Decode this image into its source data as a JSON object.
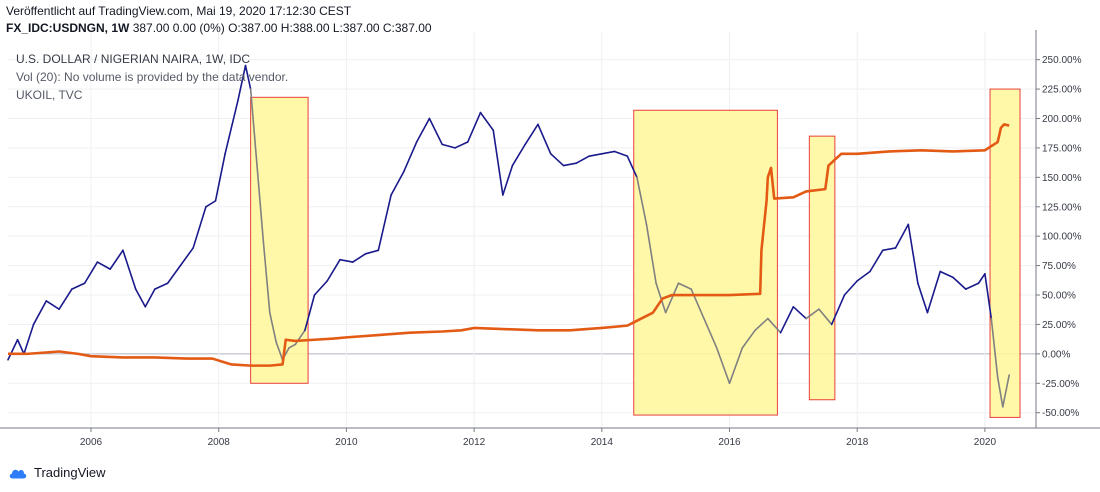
{
  "header": {
    "published": "Veröffentlicht auf TradingView.com, Mai 19, 2020 17:12:30 CEST",
    "symbol": "FX_IDC:USDNGN, 1W",
    "ohlc": "387.00 0.00 (0%) O:387.00 H:388.00 L:387.00 C:387.00"
  },
  "legend": {
    "title": "U.S. DOLLAR / NIGERIAN NAIRA, 1W, IDC",
    "volume": "Vol (20): No volume is provided by the data vendor.",
    "compare": "UKOIL, TVC"
  },
  "footer": {
    "brand": "TradingView"
  },
  "colors": {
    "ukoil": "#1a1a8c",
    "usdngn": "#e35a14",
    "ukoil_highlight": "#808080",
    "box_fill": "#fff79a",
    "box_stroke": "#e8403a"
  },
  "chart_data": {
    "type": "line",
    "x_axis": {
      "ticks": [
        2006,
        2008,
        2010,
        2012,
        2014,
        2016,
        2018,
        2020
      ],
      "range": [
        2004.7,
        2020.8
      ]
    },
    "y_axis": {
      "range": [
        -63,
        265
      ],
      "ticks": [
        -50,
        -25,
        0,
        25,
        50,
        75,
        100,
        125,
        150,
        175,
        200,
        225,
        250
      ],
      "tick_labels": [
        "-50.00%",
        "-25.00%",
        "0.00%",
        "25.00%",
        "50.00%",
        "75.00%",
        "100.00%",
        "125.00%",
        "150.00%",
        "175.00%",
        "200.00%",
        "225.00%",
        "250.00%"
      ]
    },
    "series": [
      {
        "key": "ukoil",
        "x": [
          2004.7,
          2004.85,
          2004.95,
          2005.1,
          2005.3,
          2005.5,
          2005.7,
          2005.9,
          2006.1,
          2006.3,
          2006.5,
          2006.7,
          2006.85,
          2007.0,
          2007.2,
          2007.4,
          2007.6,
          2007.8,
          2007.95,
          2008.1,
          2008.3,
          2008.42,
          2008.5,
          2008.6,
          2008.7,
          2008.8,
          2008.9,
          2009.0,
          2009.1,
          2009.2,
          2009.35,
          2009.5,
          2009.7,
          2009.9,
          2010.1,
          2010.3,
          2010.5,
          2010.7,
          2010.9,
          2011.1,
          2011.3,
          2011.5,
          2011.7,
          2011.9,
          2012.1,
          2012.3,
          2012.45,
          2012.6,
          2012.8,
          2013.0,
          2013.2,
          2013.4,
          2013.6,
          2013.8,
          2014.0,
          2014.2,
          2014.4,
          2014.55,
          2014.7,
          2014.85,
          2015.0,
          2015.2,
          2015.4,
          2015.6,
          2015.8,
          2016.0,
          2016.2,
          2016.4,
          2016.6,
          2016.8,
          2017.0,
          2017.2,
          2017.4,
          2017.6,
          2017.8,
          2018.0,
          2018.2,
          2018.4,
          2018.6,
          2018.8,
          2018.95,
          2019.1,
          2019.3,
          2019.5,
          2019.7,
          2019.9,
          2020.0,
          2020.1,
          2020.2,
          2020.28,
          2020.38
        ],
        "y": [
          -5,
          12,
          0,
          25,
          45,
          38,
          55,
          60,
          78,
          72,
          88,
          55,
          40,
          55,
          60,
          75,
          90,
          125,
          130,
          170,
          215,
          245,
          225,
          160,
          95,
          35,
          10,
          -5,
          5,
          8,
          20,
          50,
          62,
          80,
          78,
          85,
          88,
          135,
          155,
          180,
          200,
          178,
          175,
          180,
          205,
          190,
          135,
          160,
          178,
          195,
          170,
          160,
          162,
          168,
          170,
          172,
          168,
          150,
          110,
          60,
          35,
          60,
          55,
          30,
          5,
          -25,
          5,
          20,
          30,
          18,
          40,
          30,
          38,
          25,
          50,
          62,
          70,
          88,
          90,
          110,
          60,
          35,
          70,
          65,
          55,
          60,
          68,
          30,
          -20,
          -45,
          -18
        ]
      },
      {
        "key": "usdngn",
        "x": [
          2004.7,
          2005.0,
          2005.5,
          2005.8,
          2006.0,
          2006.5,
          2007.0,
          2007.5,
          2007.9,
          2008.2,
          2008.5,
          2008.8,
          2009.0,
          2009.05,
          2009.2,
          2009.5,
          2009.8,
          2010.0,
          2010.5,
          2011.0,
          2011.5,
          2011.8,
          2012.0,
          2012.5,
          2013.0,
          2013.5,
          2014.0,
          2014.4,
          2014.8,
          2014.95,
          2015.1,
          2015.5,
          2016.0,
          2016.48,
          2016.5,
          2016.58,
          2016.6,
          2016.65,
          2016.7,
          2017.0,
          2017.2,
          2017.5,
          2017.55,
          2017.75,
          2018.0,
          2018.5,
          2019.0,
          2019.5,
          2020.0,
          2020.2,
          2020.25,
          2020.3,
          2020.38
        ],
        "y": [
          0,
          0,
          2,
          0,
          -2,
          -3,
          -3,
          -4,
          -4,
          -9,
          -10,
          -10,
          -9,
          12,
          11,
          12,
          13,
          14,
          16,
          18,
          19,
          20,
          22,
          21,
          20,
          20,
          22,
          24,
          35,
          47,
          50,
          50,
          50,
          51,
          88,
          130,
          150,
          158,
          132,
          133,
          138,
          140,
          160,
          170,
          170,
          172,
          173,
          172,
          173,
          180,
          192,
          195,
          194
        ]
      }
    ],
    "highlight_boxes": [
      {
        "x": [
          2008.5,
          2009.4
        ],
        "y": [
          -25,
          218
        ]
      },
      {
        "x": [
          2014.5,
          2016.75
        ],
        "y": [
          -52,
          207
        ]
      },
      {
        "x": [
          2017.25,
          2017.65
        ],
        "y": [
          -39,
          185
        ]
      },
      {
        "x": [
          2020.08,
          2020.55
        ],
        "y": [
          -54,
          225
        ]
      }
    ]
  }
}
